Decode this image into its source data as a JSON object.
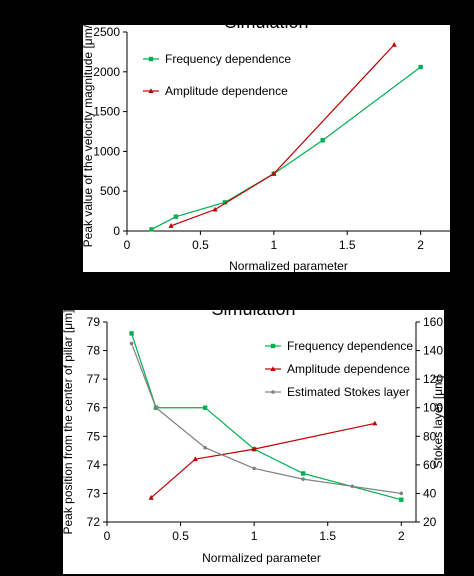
{
  "chart_data": [
    {
      "type": "line",
      "title": "Simulation",
      "xlabel": "Normalized parameter",
      "ylabel": "Peak value of the velocity magnitude [μm/s]",
      "xlim": [
        0,
        2.2
      ],
      "ylim": [
        0,
        2500
      ],
      "xticks": [
        "0",
        "0.5",
        "1",
        "1.5",
        "2"
      ],
      "xtick_values": [
        0,
        0.5,
        1,
        1.5,
        2
      ],
      "yticks": [
        "0",
        "500",
        "1000",
        "1500",
        "2000",
        "2500"
      ],
      "ytick_values": [
        0,
        500,
        1000,
        1500,
        2000,
        2500
      ],
      "grid": false,
      "legend_position": "top-left",
      "series": [
        {
          "name": "Frequency dependence",
          "color": "#00b050",
          "marker": "square",
          "x": [
            0.167,
            0.333,
            0.667,
            1.0,
            1.333,
            2.0
          ],
          "y": [
            20,
            180,
            360,
            720,
            1140,
            2060
          ]
        },
        {
          "name": "Amplitude dependence",
          "color": "#c00000",
          "marker": "triangle",
          "x": [
            0.3,
            0.6,
            1.0,
            1.82
          ],
          "y": [
            65,
            270,
            720,
            2340
          ]
        }
      ]
    },
    {
      "type": "line",
      "title": "Simulation",
      "xlabel": "Normalized parameter",
      "ylabel": "Peak position from the center of pillar [μm]",
      "y2label": "Stokes layer [μm]",
      "xlim": [
        0,
        2.1
      ],
      "ylim": [
        72,
        79
      ],
      "y2lim": [
        20,
        160
      ],
      "xticks": [
        "0",
        "0.5",
        "1",
        "1.5",
        "2"
      ],
      "xtick_values": [
        0,
        0.5,
        1,
        1.5,
        2
      ],
      "yticks": [
        "72",
        "73",
        "74",
        "75",
        "76",
        "77",
        "78",
        "79"
      ],
      "ytick_values": [
        72,
        73,
        74,
        75,
        76,
        77,
        78,
        79
      ],
      "y2ticks": [
        "20",
        "40",
        "60",
        "80",
        "100",
        "120",
        "140",
        "160"
      ],
      "y2tick_values": [
        20,
        40,
        60,
        80,
        100,
        120,
        140,
        160
      ],
      "grid": false,
      "legend_position": "top-right",
      "series": [
        {
          "name": "Frequency dependence",
          "color": "#00b050",
          "marker": "square",
          "axis": "left",
          "x": [
            0.167,
            0.333,
            0.667,
            1.0,
            1.333,
            2.0
          ],
          "y": [
            78.6,
            76.0,
            76.0,
            74.55,
            73.7,
            72.78
          ]
        },
        {
          "name": "Amplitude dependence",
          "color": "#c00000",
          "marker": "triangle",
          "axis": "left",
          "x": [
            0.3,
            0.6,
            1.0,
            1.82
          ],
          "y": [
            72.85,
            74.2,
            74.55,
            75.45
          ]
        },
        {
          "name": "Estimated Stokes layer",
          "color": "#808080",
          "marker": "dot",
          "axis": "right",
          "x": [
            0.167,
            0.333,
            0.667,
            1.0,
            1.333,
            1.667,
            2.0
          ],
          "y": [
            145,
            100,
            72,
            57.5,
            50,
            45,
            40
          ]
        }
      ]
    }
  ]
}
